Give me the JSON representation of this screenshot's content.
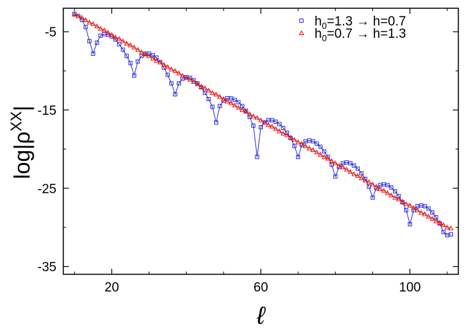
{
  "chart_data": {
    "type": "line",
    "title": "",
    "xlabel": "ℓ",
    "ylabel": "log|ρ",
    "ylabel_sup": "XX",
    "ylabel_tail": "|",
    "xlim": [
      7,
      113
    ],
    "ylim": [
      -36,
      -2
    ],
    "xticks": [
      20,
      60,
      100
    ],
    "yticks": [
      -5,
      -15,
      -25,
      -35
    ],
    "xtick_labels": [
      "20",
      "60",
      "100"
    ],
    "ytick_labels": [
      "-5",
      "-15",
      "-25",
      "-35"
    ],
    "grid": false,
    "legend_position": "top-right",
    "colors": {
      "series_blue": "#2b2bd6",
      "series_red": "#e01818"
    },
    "series": [
      {
        "name_parts": {
          "pre": "h",
          "sub": "0",
          "post": "=1.3 → h=0.7"
        },
        "marker": "square",
        "color": "#2b2bd6",
        "x": [
          10,
          11,
          12,
          13,
          14,
          15,
          16,
          17,
          18,
          19,
          20,
          21,
          22,
          23,
          24,
          25,
          26,
          27,
          28,
          29,
          30,
          31,
          32,
          33,
          34,
          35,
          36,
          37,
          38,
          39,
          40,
          41,
          42,
          43,
          44,
          45,
          46,
          47,
          48,
          49,
          50,
          51,
          52,
          53,
          54,
          55,
          56,
          57,
          58,
          59,
          60,
          61,
          62,
          63,
          64,
          65,
          66,
          67,
          68,
          69,
          70,
          71,
          72,
          73,
          74,
          75,
          76,
          77,
          78,
          79,
          80,
          81,
          82,
          83,
          84,
          85,
          86,
          87,
          88,
          89,
          90,
          91,
          92,
          93,
          94,
          95,
          96,
          97,
          98,
          99,
          100,
          101,
          102,
          103,
          104,
          105,
          106,
          107,
          108,
          109,
          110,
          111
        ],
        "y": [
          -2.7,
          -3.0,
          -3.5,
          -4.4,
          -6.2,
          -7.8,
          -6.4,
          -5.5,
          -5.3,
          -5.4,
          -5.6,
          -6.0,
          -6.6,
          -7.3,
          -8.1,
          -9.0,
          -10.6,
          -8.8,
          -8.1,
          -7.8,
          -7.8,
          -8.0,
          -8.3,
          -8.9,
          -9.6,
          -10.5,
          -11.6,
          -13.0,
          -11.6,
          -11.0,
          -10.8,
          -10.9,
          -11.2,
          -11.6,
          -12.1,
          -12.8,
          -13.6,
          -14.6,
          -16.6,
          -14.5,
          -13.8,
          -13.5,
          -13.5,
          -13.7,
          -14.0,
          -14.5,
          -15.1,
          -15.9,
          -17.0,
          -21.0,
          -17.2,
          -16.6,
          -16.3,
          -16.3,
          -16.5,
          -16.8,
          -17.3,
          -17.9,
          -18.6,
          -19.6,
          -21.0,
          -19.5,
          -19.0,
          -18.9,
          -19.0,
          -19.3,
          -19.7,
          -20.3,
          -21.0,
          -22.0,
          -23.5,
          -22.3,
          -21.8,
          -21.7,
          -21.8,
          -22.1,
          -22.5,
          -23.1,
          -23.8,
          -24.8,
          -26.2,
          -25.0,
          -24.6,
          -24.5,
          -24.6,
          -24.9,
          -25.4,
          -26.0,
          -26.8,
          -27.8,
          -29.6,
          -27.8,
          -27.3,
          -27.2,
          -27.3,
          -27.6,
          -28.1,
          -28.7,
          -29.5,
          -30.6,
          -31.0,
          -30.9
        ]
      },
      {
        "name_parts": {
          "pre": "h",
          "sub": "0",
          "post": "=0.7 → h=1.3"
        },
        "marker": "triangle",
        "color": "#e01818",
        "x": [
          10,
          11,
          12,
          13,
          14,
          15,
          16,
          17,
          18,
          19,
          20,
          21,
          22,
          23,
          24,
          25,
          26,
          27,
          28,
          29,
          30,
          31,
          32,
          33,
          34,
          35,
          36,
          37,
          38,
          39,
          40,
          41,
          42,
          43,
          44,
          45,
          46,
          47,
          48,
          49,
          50,
          51,
          52,
          53,
          54,
          55,
          56,
          57,
          58,
          59,
          60,
          61,
          62,
          63,
          64,
          65,
          66,
          67,
          68,
          69,
          70,
          71,
          72,
          73,
          74,
          75,
          76,
          77,
          78,
          79,
          80,
          81,
          82,
          83,
          84,
          85,
          86,
          87,
          88,
          89,
          90,
          91,
          92,
          93,
          94,
          95,
          96,
          97,
          98,
          99,
          100,
          101,
          102,
          103,
          104,
          105,
          106,
          107,
          108,
          109,
          110,
          111
        ],
        "y": [
          -2.8,
          -3.0,
          -3.2,
          -3.5,
          -3.8,
          -4.0,
          -4.3,
          -4.6,
          -4.8,
          -5.1,
          -5.4,
          -5.7,
          -5.9,
          -6.2,
          -6.5,
          -6.7,
          -7.0,
          -7.3,
          -7.6,
          -7.9,
          -8.1,
          -8.4,
          -8.7,
          -8.9,
          -9.2,
          -9.5,
          -9.8,
          -10.0,
          -10.3,
          -10.6,
          -10.9,
          -11.1,
          -11.4,
          -11.7,
          -12.0,
          -12.2,
          -12.5,
          -12.8,
          -13.0,
          -13.3,
          -13.6,
          -13.9,
          -14.1,
          -14.4,
          -14.7,
          -15.0,
          -15.2,
          -15.5,
          -15.8,
          -16.0,
          -16.3,
          -16.6,
          -16.9,
          -17.1,
          -17.4,
          -17.7,
          -18.0,
          -18.2,
          -18.5,
          -18.8,
          -19.1,
          -19.3,
          -19.6,
          -19.9,
          -20.1,
          -20.4,
          -20.7,
          -21.0,
          -21.2,
          -21.5,
          -21.8,
          -22.1,
          -22.3,
          -22.6,
          -22.9,
          -23.2,
          -23.4,
          -23.7,
          -24.0,
          -24.2,
          -24.5,
          -24.8,
          -25.1,
          -25.3,
          -25.6,
          -25.9,
          -26.2,
          -26.4,
          -26.7,
          -27.0,
          -27.2,
          -27.5,
          -27.8,
          -28.1,
          -28.3,
          -28.6,
          -28.9,
          -29.2,
          -29.4,
          -29.7,
          -30.0,
          -30.1
        ]
      }
    ]
  }
}
